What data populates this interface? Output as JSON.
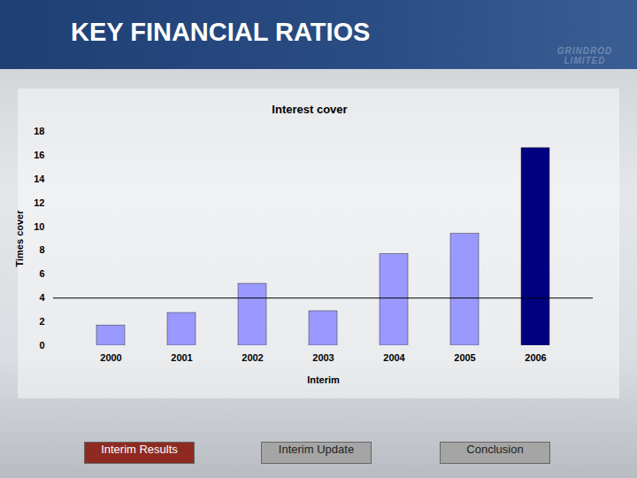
{
  "header": {
    "title": "KEY FINANCIAL RATIOS",
    "logo": "GRINDROD LIMITED"
  },
  "chart_data": {
    "type": "bar",
    "title": "Interest cover",
    "y_label": "Times cover",
    "x_label": "Interim",
    "categories": [
      "2000",
      "2001",
      "2002",
      "2003",
      "2004",
      "2005",
      "2006"
    ],
    "values": [
      1.7,
      2.75,
      5.2,
      2.9,
      7.7,
      9.4,
      16.6
    ],
    "colors": [
      "#9999ff",
      "#9999ff",
      "#9999ff",
      "#9999ff",
      "#9999ff",
      "#9999ff",
      "#000080"
    ],
    "reference_line": 4,
    "ylim": [
      0,
      18
    ],
    "yticks": [
      0,
      2,
      4,
      6,
      8,
      10,
      12,
      14,
      16,
      18
    ],
    "grid": false
  },
  "footer": {
    "buttons": [
      "Interim Results",
      "Interim Update",
      "Conclusion"
    ]
  }
}
